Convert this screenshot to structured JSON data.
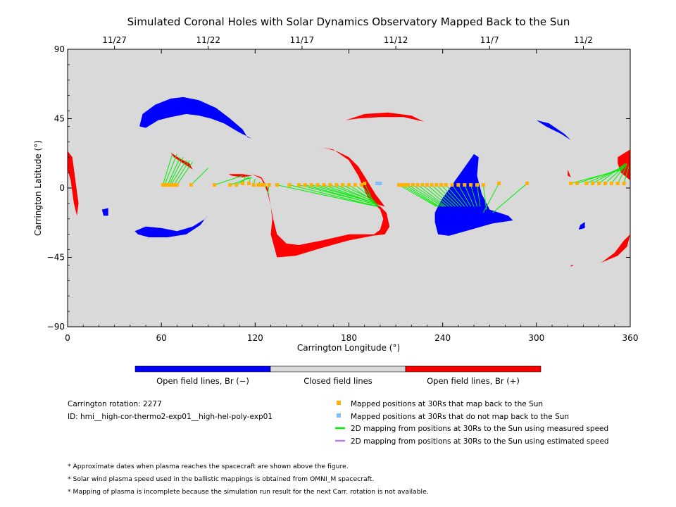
{
  "chart_data": {
    "type": "scatter",
    "title": "Simulated Coronal Holes with Solar Dynamics Observatory Mapped Back to the Sun",
    "xlabel": "Carrington Longitude (°)",
    "ylabel": "Carrington Latitude (°)",
    "xlim": [
      0,
      360
    ],
    "ylim": [
      -90,
      90
    ],
    "xticks": [
      0,
      60,
      120,
      180,
      240,
      300,
      360
    ],
    "yticks": [
      -90,
      -45,
      0,
      45,
      90
    ],
    "date_ticks": [
      {
        "label": "11/27",
        "lon": 30
      },
      {
        "label": "11/22",
        "lon": 90
      },
      {
        "label": "11/17",
        "lon": 150
      },
      {
        "label": "11/12",
        "lon": 210
      },
      {
        "label": "11/7",
        "lon": 270
      },
      {
        "label": "11/2",
        "lon": 330
      }
    ],
    "colors": {
      "background": "#d9d9d9",
      "open_negative": "#0000ff",
      "open_positive": "#ff0000",
      "closed": "#d9d9d9",
      "mapped": "#ffb000",
      "unmapped": "#7fbfff",
      "measured_speed": "#00ee00",
      "estimated_speed": "#b080ee"
    },
    "coronal_holes": [
      {
        "polarity": "negative",
        "points": [
          [
            46,
            40
          ],
          [
            48,
            48
          ],
          [
            56,
            54
          ],
          [
            66,
            58
          ],
          [
            74,
            59
          ],
          [
            84,
            57
          ],
          [
            95,
            52
          ],
          [
            104,
            45
          ],
          [
            112,
            38
          ],
          [
            115,
            33
          ],
          [
            118,
            32
          ],
          [
            110,
            36
          ],
          [
            100,
            42
          ],
          [
            92,
            45
          ],
          [
            84,
            47
          ],
          [
            76,
            48
          ],
          [
            66,
            46
          ],
          [
            58,
            44
          ],
          [
            50,
            39
          ]
        ]
      },
      {
        "polarity": "negative",
        "points": [
          [
            43,
            -28
          ],
          [
            50,
            -25
          ],
          [
            60,
            -26
          ],
          [
            70,
            -28
          ],
          [
            80,
            -25
          ],
          [
            88,
            -20
          ],
          [
            90,
            -17
          ],
          [
            85,
            -24
          ],
          [
            76,
            -30
          ],
          [
            64,
            -32
          ],
          [
            52,
            -32
          ],
          [
            45,
            -30
          ]
        ]
      },
      {
        "polarity": "negative",
        "points": [
          [
            22,
            -14
          ],
          [
            26,
            -13
          ],
          [
            26,
            -18
          ],
          [
            23,
            -18
          ]
        ]
      },
      {
        "polarity": "negative",
        "points": [
          [
            239,
            -8
          ],
          [
            246,
            2
          ],
          [
            253,
            12
          ],
          [
            260,
            22
          ],
          [
            263,
            20
          ],
          [
            262,
            8
          ],
          [
            265,
            -4
          ],
          [
            270,
            -14
          ],
          [
            282,
            -18
          ],
          [
            285,
            -21
          ],
          [
            272,
            -23
          ],
          [
            258,
            -27
          ],
          [
            244,
            -31
          ],
          [
            237,
            -30
          ],
          [
            235,
            -22
          ],
          [
            235,
            -16
          ]
        ]
      },
      {
        "polarity": "negative",
        "points": [
          [
            300,
            44
          ],
          [
            308,
            42
          ],
          [
            318,
            35
          ],
          [
            322,
            31
          ],
          [
            316,
            35
          ],
          [
            306,
            40
          ]
        ]
      },
      {
        "polarity": "negative",
        "points": [
          [
            328,
            -24
          ],
          [
            331,
            -22
          ],
          [
            331,
            -26
          ],
          [
            327,
            -27
          ]
        ]
      },
      {
        "polarity": "positive",
        "points": [
          [
            0,
            24
          ],
          [
            3,
            20
          ],
          [
            5,
            5
          ],
          [
            7,
            -10
          ],
          [
            6,
            -18
          ],
          [
            4,
            -10
          ],
          [
            2,
            5
          ],
          [
            0,
            12
          ]
        ]
      },
      {
        "polarity": "positive",
        "points": [
          [
            178,
            44
          ],
          [
            190,
            48
          ],
          [
            205,
            49
          ],
          [
            220,
            47
          ],
          [
            228,
            43
          ],
          [
            215,
            46
          ],
          [
            200,
            46
          ],
          [
            185,
            45
          ]
        ]
      },
      {
        "polarity": "positive",
        "points": [
          [
            158,
            27
          ],
          [
            170,
            25
          ],
          [
            180,
            18
          ],
          [
            186,
            8
          ],
          [
            192,
            -6
          ],
          [
            196,
            -10
          ],
          [
            203,
            -12
          ],
          [
            197,
            -4
          ],
          [
            191,
            6
          ],
          [
            186,
            14
          ],
          [
            180,
            20
          ],
          [
            172,
            24
          ],
          [
            164,
            26
          ]
        ]
      },
      {
        "polarity": "positive",
        "points": [
          [
            112,
            9
          ],
          [
            118,
            9
          ],
          [
            124,
            6
          ],
          [
            128,
            -3
          ],
          [
            130,
            -12
          ],
          [
            131,
            -20
          ],
          [
            130,
            -30
          ],
          [
            134,
            -45
          ],
          [
            146,
            -44
          ],
          [
            162,
            -39
          ],
          [
            180,
            -34
          ],
          [
            195,
            -31
          ],
          [
            200,
            -27
          ],
          [
            196,
            -30
          ],
          [
            180,
            -30
          ],
          [
            163,
            -34
          ],
          [
            148,
            -37
          ],
          [
            140,
            -36
          ],
          [
            134,
            -30
          ],
          [
            132,
            -22
          ],
          [
            130,
            -12
          ],
          [
            128,
            0
          ],
          [
            124,
            7
          ],
          [
            118,
            9
          ]
        ]
      },
      {
        "polarity": "positive",
        "points": [
          [
            196,
            -10
          ],
          [
            200,
            -12
          ],
          [
            204,
            -16
          ],
          [
            206,
            -25
          ],
          [
            203,
            -30
          ],
          [
            195,
            -31
          ],
          [
            200,
            -27
          ],
          [
            202,
            -20
          ],
          [
            200,
            -14
          ]
        ]
      },
      {
        "polarity": "positive",
        "points": [
          [
            66,
            23
          ],
          [
            72,
            19
          ],
          [
            78,
            16
          ],
          [
            80,
            12
          ],
          [
            74,
            16
          ],
          [
            68,
            20
          ]
        ]
      },
      {
        "polarity": "positive",
        "points": [
          [
            103,
            9
          ],
          [
            112,
            9
          ],
          [
            118,
            8
          ],
          [
            112,
            7
          ],
          [
            105,
            8
          ]
        ]
      },
      {
        "polarity": "positive",
        "points": [
          [
            352,
            20
          ],
          [
            360,
            25
          ],
          [
            360,
            5
          ],
          [
            354,
            10
          ],
          [
            352,
            16
          ]
        ]
      },
      {
        "polarity": "positive",
        "points": [
          [
            320,
            12
          ],
          [
            322,
            7
          ],
          [
            320,
            8
          ]
        ]
      },
      {
        "polarity": "positive",
        "points": [
          [
            340,
            -49
          ],
          [
            352,
            -44
          ],
          [
            358,
            -38
          ],
          [
            360,
            -30
          ],
          [
            356,
            -34
          ],
          [
            350,
            -42
          ],
          [
            342,
            -48
          ]
        ]
      },
      {
        "polarity": "positive",
        "points": [
          [
            322,
            -51
          ],
          [
            324,
            -50
          ],
          [
            322,
            -50
          ]
        ]
      }
    ],
    "mapped_lines": [
      {
        "lon": 61,
        "lat": 2,
        "sun_lon": 67,
        "sun_lat": 22
      },
      {
        "lon": 62,
        "lat": 2,
        "sun_lon": 70,
        "sun_lat": 22
      },
      {
        "lon": 64,
        "lat": 2,
        "sun_lon": 72,
        "sun_lat": 20
      },
      {
        "lon": 65,
        "lat": 2,
        "sun_lon": 74,
        "sun_lat": 20
      },
      {
        "lon": 66,
        "lat": 2,
        "sun_lon": 76,
        "sun_lat": 18
      },
      {
        "lon": 68,
        "lat": 2,
        "sun_lon": 78,
        "sun_lat": 18
      },
      {
        "lon": 70,
        "lat": 2,
        "sun_lon": 80,
        "sun_lat": 17
      },
      {
        "lon": 79,
        "lat": 2,
        "sun_lon": 90,
        "sun_lat": 13
      },
      {
        "lon": 94,
        "lat": 2,
        "sun_lon": 112,
        "sun_lat": 8
      },
      {
        "lon": 104,
        "lat": 2,
        "sun_lon": 118,
        "sun_lat": 7
      },
      {
        "lon": 108,
        "lat": 2,
        "sun_lon": 116,
        "sun_lat": 7
      },
      {
        "lon": 112,
        "lat": 3,
        "sun_lon": 114,
        "sun_lat": 8
      },
      {
        "lon": 116,
        "lat": 3,
        "sun_lon": 117,
        "sun_lat": 7
      },
      {
        "lon": 119,
        "lat": 2,
        "sun_lon": 120,
        "sun_lat": 6
      },
      {
        "lon": 122,
        "lat": 2,
        "sun_lon": 123,
        "sun_lat": 4
      },
      {
        "lon": 124,
        "lat": 2,
        "sun_lon": 125,
        "sun_lat": 2
      },
      {
        "lon": 126,
        "lat": 2,
        "sun_lon": 127,
        "sun_lat": 0
      },
      {
        "lon": 129,
        "lat": 2,
        "sun_lon": 128,
        "sun_lat": -4
      },
      {
        "lon": 134,
        "lat": 2,
        "sun_lon": 198,
        "sun_lat": -12
      },
      {
        "lon": 142,
        "lat": 2,
        "sun_lon": 199,
        "sun_lat": -12
      },
      {
        "lon": 148,
        "lat": 2,
        "sun_lon": 199,
        "sun_lat": -11
      },
      {
        "lon": 152,
        "lat": 2,
        "sun_lon": 198,
        "sun_lat": -11
      },
      {
        "lon": 156,
        "lat": 2,
        "sun_lon": 198,
        "sun_lat": -10
      },
      {
        "lon": 160,
        "lat": 2,
        "sun_lon": 197,
        "sun_lat": -10
      },
      {
        "lon": 164,
        "lat": 2,
        "sun_lon": 197,
        "sun_lat": -10
      },
      {
        "lon": 168,
        "lat": 2,
        "sun_lon": 197,
        "sun_lat": -9
      },
      {
        "lon": 172,
        "lat": 2,
        "sun_lon": 196,
        "sun_lat": -9
      },
      {
        "lon": 176,
        "lat": 2,
        "sun_lon": 196,
        "sun_lat": -8
      },
      {
        "lon": 180,
        "lat": 2,
        "sun_lon": 195,
        "sun_lat": -8
      },
      {
        "lon": 184,
        "lat": 2,
        "sun_lon": 195,
        "sun_lat": -7
      },
      {
        "lon": 188,
        "lat": 2,
        "sun_lon": 194,
        "sun_lat": -6
      },
      {
        "lon": 190,
        "lat": 3,
        "sun_lon": 194,
        "sun_lat": -5
      },
      {
        "lon": 212,
        "lat": 2,
        "sun_lon": 236,
        "sun_lat": -12
      },
      {
        "lon": 214,
        "lat": 2,
        "sun_lon": 237,
        "sun_lat": -12
      },
      {
        "lon": 216,
        "lat": 2,
        "sun_lon": 238,
        "sun_lat": -12
      },
      {
        "lon": 218,
        "lat": 2,
        "sun_lon": 240,
        "sun_lat": -12
      },
      {
        "lon": 221,
        "lat": 2,
        "sun_lon": 241,
        "sun_lat": -12
      },
      {
        "lon": 224,
        "lat": 2,
        "sun_lon": 242,
        "sun_lat": -12
      },
      {
        "lon": 227,
        "lat": 2,
        "sun_lon": 244,
        "sun_lat": -12
      },
      {
        "lon": 230,
        "lat": 2,
        "sun_lon": 246,
        "sun_lat": -12
      },
      {
        "lon": 233,
        "lat": 2,
        "sun_lon": 248,
        "sun_lat": -12
      },
      {
        "lon": 236,
        "lat": 2,
        "sun_lon": 250,
        "sun_lat": -12
      },
      {
        "lon": 239,
        "lat": 2,
        "sun_lon": 252,
        "sun_lat": -12
      },
      {
        "lon": 242,
        "lat": 2,
        "sun_lon": 254,
        "sun_lat": -12
      },
      {
        "lon": 246,
        "lat": 2,
        "sun_lon": 256,
        "sun_lat": -12
      },
      {
        "lon": 250,
        "lat": 2,
        "sun_lon": 258,
        "sun_lat": -12
      },
      {
        "lon": 254,
        "lat": 2,
        "sun_lon": 260,
        "sun_lat": -12
      },
      {
        "lon": 258,
        "lat": 2,
        "sun_lon": 262,
        "sun_lat": -12
      },
      {
        "lon": 262,
        "lat": 2,
        "sun_lon": 264,
        "sun_lat": -12
      },
      {
        "lon": 266,
        "lat": 2,
        "sun_lon": 268,
        "sun_lat": -14
      },
      {
        "lon": 276,
        "lat": 3,
        "sun_lon": 266,
        "sun_lat": -16
      },
      {
        "lon": 294,
        "lat": 3,
        "sun_lon": 272,
        "sun_lat": -16
      },
      {
        "lon": 322,
        "lat": 3,
        "sun_lon": 355,
        "sun_lat": 12
      },
      {
        "lon": 326,
        "lat": 3,
        "sun_lon": 356,
        "sun_lat": 13
      },
      {
        "lon": 332,
        "lat": 3,
        "sun_lon": 356,
        "sun_lat": 14
      },
      {
        "lon": 336,
        "lat": 3,
        "sun_lon": 357,
        "sun_lat": 15
      },
      {
        "lon": 340,
        "lat": 3,
        "sun_lon": 357,
        "sun_lat": 16
      },
      {
        "lon": 344,
        "lat": 3,
        "sun_lon": 358,
        "sun_lat": 16
      },
      {
        "lon": 348,
        "lat": 3,
        "sun_lon": 358,
        "sun_lat": 16
      },
      {
        "lon": 352,
        "lat": 3,
        "sun_lon": 358,
        "sun_lat": 15
      },
      {
        "lon": 356,
        "lat": 3,
        "sun_lon": 359,
        "sun_lat": 14
      }
    ],
    "unmapped_points": [
      {
        "lon": 198,
        "lat": 3
      },
      {
        "lon": 200,
        "lat": 3
      }
    ]
  },
  "colorbar": {
    "labels": [
      "Open field lines, Br (−)",
      "Closed field lines",
      "Open field lines, Br (+)"
    ],
    "colors": [
      "#0000ff",
      "#d9d9d9",
      "#ff0000"
    ]
  },
  "info": {
    "rotation": "Carrington rotation: 2277",
    "id": "ID: hmi__high-cor-thermo2-exp01__high-hel-poly-exp01"
  },
  "legend": [
    {
      "kind": "square",
      "color": "#ffb000",
      "label": "Mapped positions at 30Rs that map back to the Sun"
    },
    {
      "kind": "square",
      "color": "#7fbfff",
      "label": "Mapped positions at 30Rs that do not map back to the Sun"
    },
    {
      "kind": "line",
      "color": "#00ee00",
      "label": "2D mapping from positions at 30Rs to the Sun using measured speed"
    },
    {
      "kind": "line",
      "color": "#b080ee",
      "label": "2D mapping from positions at 30Rs to the Sun using estimated speed"
    }
  ],
  "notes": [
    "* Approximate dates when plasma reaches the spacecraft are shown above the figure.",
    "* Solar wind plasma speed used in the ballistic mappings is obtained from OMNI_M spacecraft.",
    "* Mapping of plasma is incomplete because the simulation run result for the next Carr. rotation is not available."
  ]
}
